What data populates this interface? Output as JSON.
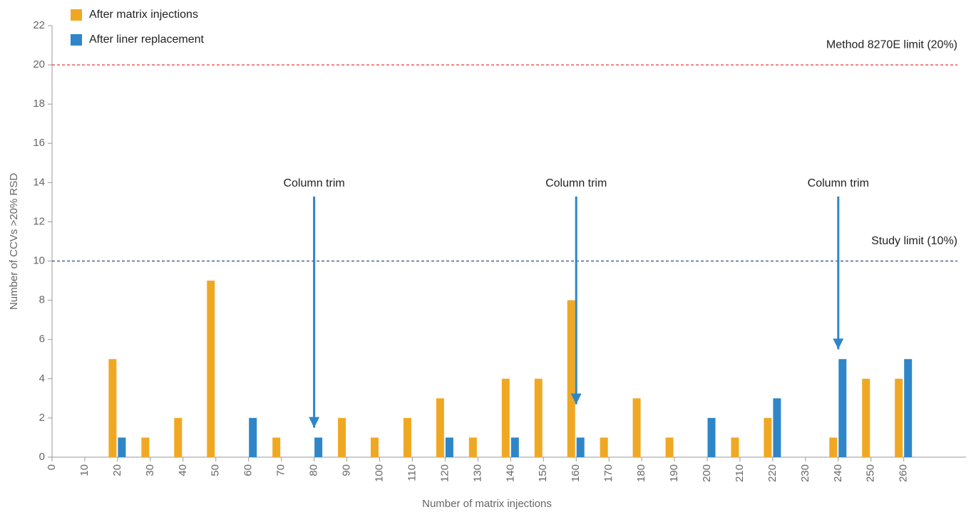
{
  "chart_data": {
    "type": "bar",
    "x_label": "Number of matrix injections",
    "y_label": "Number of CCVs >20% RSD",
    "x": [
      0,
      10,
      20,
      30,
      40,
      50,
      60,
      70,
      80,
      90,
      100,
      110,
      120,
      130,
      140,
      150,
      160,
      170,
      180,
      190,
      200,
      210,
      220,
      230,
      240,
      250,
      260
    ],
    "series": [
      {
        "name": "After matrix injections",
        "color": "#f0a823",
        "values": [
          null,
          null,
          5,
          1,
          2,
          9,
          null,
          1,
          null,
          2,
          1,
          2,
          3,
          1,
          4,
          4,
          8,
          1,
          3,
          1,
          null,
          1,
          2,
          null,
          1,
          4,
          4
        ]
      },
      {
        "name": "After liner replacement",
        "color": "#2e86c8",
        "values": [
          null,
          null,
          1,
          null,
          null,
          null,
          2,
          null,
          1,
          null,
          null,
          null,
          1,
          null,
          1,
          null,
          1,
          null,
          null,
          null,
          2,
          null,
          3,
          null,
          5,
          null,
          5
        ]
      }
    ],
    "xlim": [
      0,
      279
    ],
    "xticks": [
      0,
      10,
      20,
      30,
      40,
      50,
      60,
      70,
      80,
      90,
      100,
      110,
      120,
      130,
      140,
      150,
      160,
      170,
      180,
      190,
      200,
      210,
      220,
      230,
      240,
      250,
      260
    ],
    "ylim": [
      0,
      22
    ],
    "yticks": [
      0,
      2,
      4,
      6,
      8,
      10,
      12,
      14,
      16,
      18,
      20,
      22
    ],
    "reference_lines": [
      {
        "label": "Method 8270E limit (20%)",
        "value": 20,
        "color": "#e8383d"
      },
      {
        "label": "Study limit (10%)",
        "value": 10,
        "color": "#1f3f73"
      }
    ],
    "annotations": [
      {
        "text": "Column trim",
        "x": 80,
        "y": 1.5
      },
      {
        "text": "Column trim",
        "x": 160,
        "y": 2.7
      },
      {
        "text": "Column trim",
        "x": 240,
        "y": 5.5
      }
    ],
    "legend": "top-left"
  }
}
